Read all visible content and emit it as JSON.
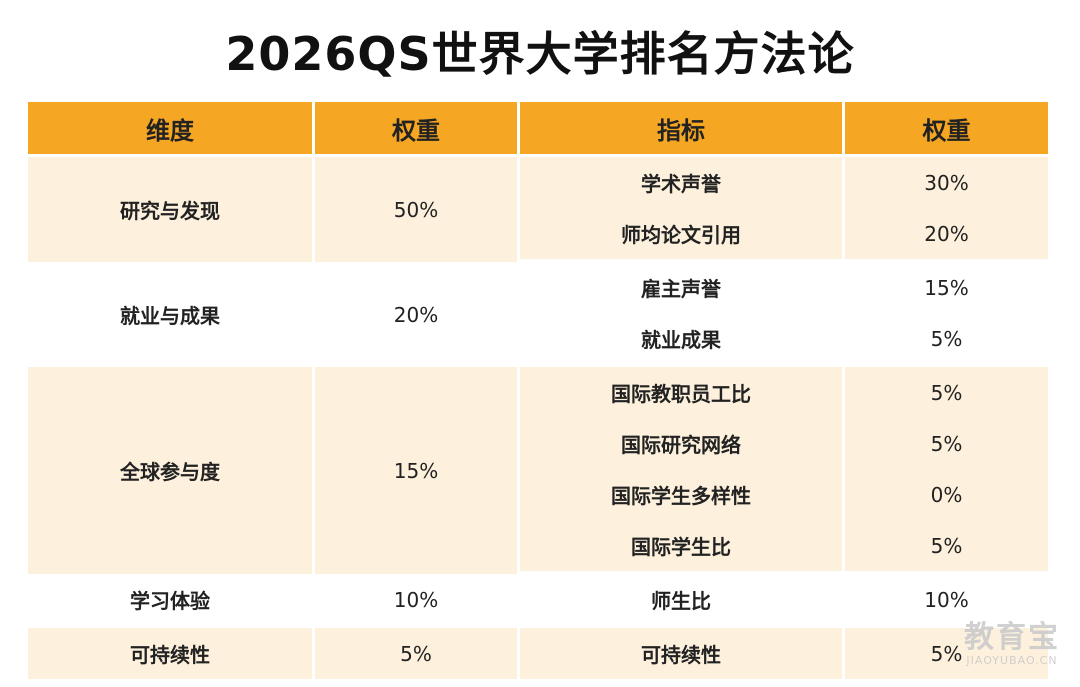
{
  "title": "2026QS世界大学排名方法论",
  "table": {
    "headers": [
      "维度",
      "权重",
      "指标",
      "权重"
    ],
    "groups": [
      {
        "dimension": "研究与发现",
        "weight": "50%",
        "indicators": [
          {
            "name": "学术声誉",
            "weight": "30%"
          },
          {
            "name": "师均论文引用",
            "weight": "20%"
          }
        ]
      },
      {
        "dimension": "就业与成果",
        "weight": "20%",
        "indicators": [
          {
            "name": "雇主声誉",
            "weight": "15%"
          },
          {
            "name": "就业成果",
            "weight": "5%"
          }
        ]
      },
      {
        "dimension": "全球参与度",
        "weight": "15%",
        "indicators": [
          {
            "name": "国际教职员工比",
            "weight": "5%"
          },
          {
            "name": "国际研究网络",
            "weight": "5%"
          },
          {
            "name": "国际学生多样性",
            "weight": "0%"
          },
          {
            "name": "国际学生比",
            "weight": "5%"
          }
        ]
      },
      {
        "dimension": "学习体验",
        "weight": "10%",
        "indicators": [
          {
            "name": "师生比",
            "weight": "10%"
          }
        ]
      },
      {
        "dimension": "可持续性",
        "weight": "5%",
        "indicators": [
          {
            "name": "可持续性",
            "weight": "5%"
          }
        ]
      }
    ]
  },
  "watermark": {
    "main": "教育宝",
    "sub": "JIAOYUBAO.CN"
  },
  "colors": {
    "header_bg": "#f5a623",
    "shaded_row_bg": "#fdf1de",
    "plain_row_bg": "#ffffff"
  }
}
